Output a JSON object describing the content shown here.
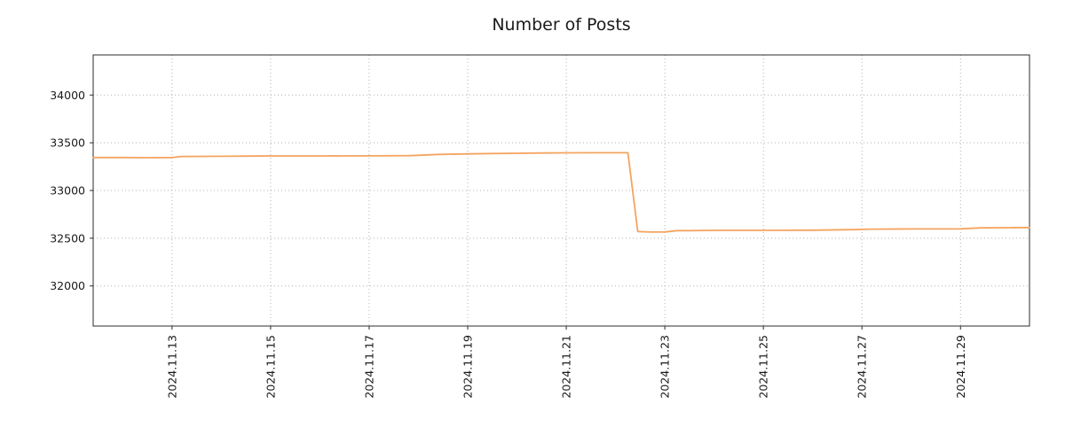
{
  "chart_data": {
    "type": "line",
    "title": "Number of Posts",
    "xlabel": "",
    "ylabel": "",
    "x_unit": "day of November 2024 (fractional)",
    "xlim": [
      11.4,
      30.4
    ],
    "ylim": [
      31580,
      34420
    ],
    "grid": true,
    "legend": "none",
    "line_color": "#f4a460",
    "x_ticks": [
      {
        "value": 13,
        "label": "2024.11.13"
      },
      {
        "value": 15,
        "label": "2024.11.15"
      },
      {
        "value": 17,
        "label": "2024.11.17"
      },
      {
        "value": 19,
        "label": "2024.11.19"
      },
      {
        "value": 21,
        "label": "2024.11.21"
      },
      {
        "value": 23,
        "label": "2024.11.23"
      },
      {
        "value": 25,
        "label": "2024.11.25"
      },
      {
        "value": 27,
        "label": "2024.11.27"
      },
      {
        "value": 29,
        "label": "2024.11.29"
      }
    ],
    "y_ticks": [
      {
        "value": 32000,
        "label": "32000"
      },
      {
        "value": 32500,
        "label": "32500"
      },
      {
        "value": 33000,
        "label": "33000"
      },
      {
        "value": 33500,
        "label": "33500"
      },
      {
        "value": 34000,
        "label": "34000"
      }
    ],
    "series": [
      {
        "name": "Number of Posts",
        "x": [
          11.4,
          12.0,
          12.5,
          13.0,
          13.2,
          14.0,
          14.5,
          15.0,
          16.0,
          17.0,
          17.8,
          18.0,
          18.4,
          19.0,
          19.5,
          20.0,
          20.5,
          21.0,
          21.6,
          22.0,
          22.25,
          22.45,
          22.7,
          23.0,
          23.25,
          23.5,
          24.0,
          25.0,
          26.0,
          26.8,
          27.2,
          28.0,
          29.0,
          29.4,
          30.0,
          30.4
        ],
        "y": [
          33345,
          33345,
          33343,
          33345,
          33356,
          33358,
          33360,
          33362,
          33362,
          33363,
          33365,
          33368,
          33378,
          33383,
          33387,
          33390,
          33393,
          33394,
          33395,
          33395,
          33395,
          32570,
          32565,
          32566,
          32580,
          32580,
          32582,
          32582,
          32584,
          32590,
          32595,
          32597,
          32598,
          32608,
          32610,
          32612
        ]
      }
    ]
  }
}
